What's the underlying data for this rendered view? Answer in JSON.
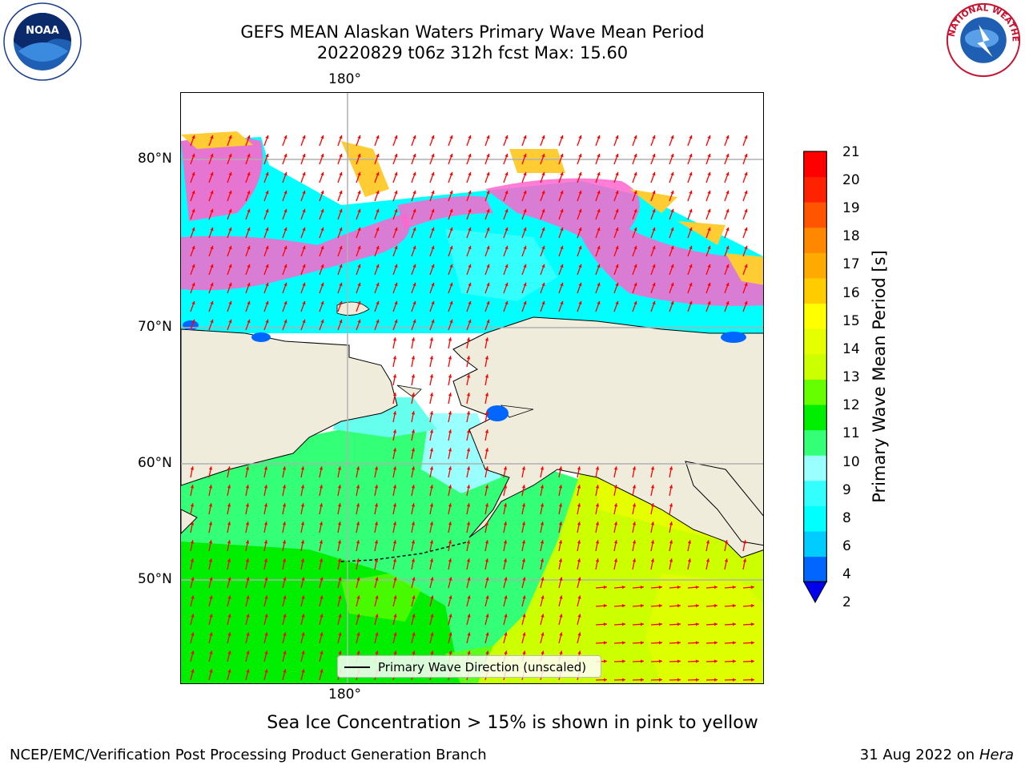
{
  "title": {
    "line1": "GEFS MEAN Alaskan Waters Primary Wave Mean Period",
    "line2": "20220829 t06z 312h fcst   Max: 15.60"
  },
  "map": {
    "meridian_label_top": "180°",
    "meridian_label_bottom": "180°",
    "latitude_labels": [
      "80°N",
      "70°N",
      "60°N",
      "50°N"
    ],
    "land_color": "#efecdc",
    "arrow_color": "#ff0000"
  },
  "colorbar": {
    "label": "Primary Wave Mean Period [s]",
    "ticks": [
      "21",
      "20",
      "19",
      "18",
      "17",
      "16",
      "15",
      "14",
      "13",
      "12",
      "11",
      "10",
      "9",
      "8",
      "6",
      "4",
      "2"
    ],
    "colors_bottom_to_top": [
      "#0066ff",
      "#00ccff",
      "#00ffff",
      "#33ffff",
      "#99ffff",
      "#33ff77",
      "#00ee00",
      "#66ff00",
      "#ccff00",
      "#e6ff00",
      "#ffff00",
      "#ffcc00",
      "#ffaa00",
      "#ff8800",
      "#ff5500",
      "#ff2200",
      "#ff0000"
    ],
    "extend_color": "#0000ee"
  },
  "legend": {
    "text": "Primary Wave Direction (unscaled)"
  },
  "subcaption": "Sea Ice Concentration > 15% is shown in pink to yellow",
  "footer": {
    "left": "NCEP/EMC/Verification Post Processing Product Generation Branch",
    "right_date": "31 Aug 2022 on",
    "right_host": "Hera"
  },
  "logos": {
    "noaa_text": "NOAA",
    "nws_text": "NATIONAL WEATHER SERVICE"
  }
}
